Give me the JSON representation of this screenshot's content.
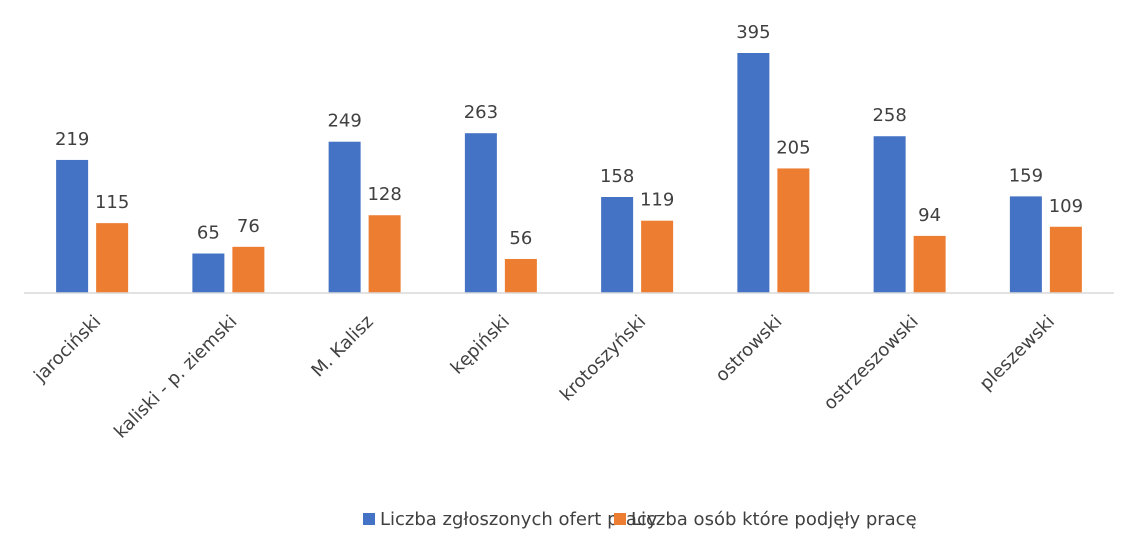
{
  "chart_data": {
    "type": "bar",
    "categories": [
      "jarociński",
      "kaliski - p. ziemski",
      "M. Kalisz",
      "kępiński",
      "krotoszyński",
      "ostrowski",
      "ostrzeszowski",
      "pleszewski"
    ],
    "series": [
      {
        "name": "Liczba zgłoszonych ofert pracy",
        "color": "#4472c4",
        "values": [
          219,
          65,
          249,
          263,
          158,
          395,
          258,
          159
        ]
      },
      {
        "name": "Liczba osób które podjęły pracę",
        "color": "#ed7d31",
        "values": [
          115,
          76,
          128,
          56,
          119,
          205,
          94,
          109
        ]
      }
    ],
    "legend": "bottom"
  }
}
